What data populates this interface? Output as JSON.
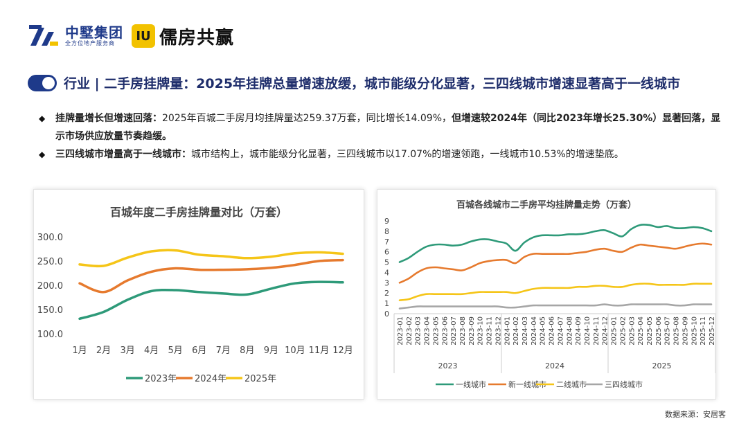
{
  "header": {
    "company_name": "中墅集团",
    "company_tagline": "全方位地产服务商",
    "badge_text": "IU",
    "brand_name": "儒房共赢"
  },
  "page_title": "行业 | 二手房挂牌量：2025年挂牌总量增速放缓，城市能级分化显著，三四线城市增速显著高于一线城市",
  "bullets": [
    {
      "bold_lead": "挂牌量增长但增速回落：",
      "text": "2025年百城二手房月均挂牌量达259.37万套，同比增长14.09%，",
      "bold_tail": "但增速较2024年（同比2023年增长25.30%）显著回落，显示市场供应放量节奏趋缓。"
    },
    {
      "bold_lead": "三四线城市增量高于一线城市：",
      "text": "城市结构上，城市能级分化显著，三四线城市以17.07%的增速领跑，一线城市10.53%的增速垫底。",
      "bold_tail": ""
    }
  ],
  "footer": {
    "source": "数据来源：安居客"
  },
  "colors": {
    "green": "#2e9a79",
    "orange": "#e67a2e",
    "yellow": "#f5c518",
    "gray": "#a6a6a6",
    "navy": "#1e3a8a"
  },
  "chart_data": [
    {
      "type": "line",
      "title": "百城年度二手房挂牌量对比（万套）",
      "categories": [
        "1月",
        "2月",
        "3月",
        "4月",
        "5月",
        "6月",
        "7月",
        "8月",
        "9月",
        "10月",
        "11月",
        "12月"
      ],
      "ylim": [
        100,
        300
      ],
      "yticks": [
        "100.0",
        "150.0",
        "200.0",
        "250.0",
        "300.0"
      ],
      "legend_position": "bottom",
      "series": [
        {
          "name": "2023年",
          "color": "#2e9a79",
          "values": [
            131,
            145,
            170,
            188,
            190,
            186,
            183,
            181,
            193,
            204,
            207,
            206
          ]
        },
        {
          "name": "2024年",
          "color": "#e67a2e",
          "values": [
            204,
            186,
            210,
            228,
            235,
            232,
            232,
            233,
            236,
            242,
            250,
            252
          ]
        },
        {
          "name": "2025年",
          "color": "#f5c518",
          "values": [
            243,
            240,
            257,
            270,
            272,
            263,
            260,
            256,
            259,
            266,
            268,
            265
          ]
        }
      ]
    },
    {
      "type": "line",
      "title": "百城各线城市二手房平均挂牌量走势（万套）",
      "categories": [
        "2023-01",
        "2023-02",
        "2023-03",
        "2023-04",
        "2023-05",
        "2023-06",
        "2023-07",
        "2023-08",
        "2023-09",
        "2023-10",
        "2023-11",
        "2023-12",
        "2024-01",
        "2024-02",
        "2024-03",
        "2024-04",
        "2024-05",
        "2024-06",
        "2024-07",
        "2024-08",
        "2024-09",
        "2024-10",
        "2024-11",
        "2024-12",
        "2025-01",
        "2025-02",
        "2025-03",
        "2025-04",
        "2025-05",
        "2025-06",
        "2025-07",
        "2025-08",
        "2025-09",
        "2025-10",
        "2025-11",
        "2025-12"
      ],
      "year_groups": [
        "2023",
        "2024",
        "2025"
      ],
      "ylim": [
        0,
        9
      ],
      "yticks": [
        "0",
        "1",
        "2",
        "3",
        "4",
        "5",
        "6",
        "7",
        "8",
        "9"
      ],
      "legend_position": "bottom",
      "series": [
        {
          "name": "一线城市",
          "color": "#2e9a79",
          "values": [
            5.0,
            5.4,
            6.0,
            6.5,
            6.7,
            6.7,
            6.6,
            6.7,
            7.0,
            7.2,
            7.2,
            7.0,
            6.8,
            6.1,
            6.9,
            7.4,
            7.6,
            7.6,
            7.6,
            7.7,
            7.7,
            7.8,
            8.0,
            8.1,
            7.8,
            7.5,
            8.2,
            8.6,
            8.6,
            8.4,
            8.5,
            8.3,
            8.3,
            8.4,
            8.3,
            8.0
          ]
        },
        {
          "name": "新一线城市",
          "color": "#e67a2e",
          "values": [
            3.0,
            3.4,
            4.0,
            4.4,
            4.5,
            4.4,
            4.3,
            4.2,
            4.5,
            4.9,
            5.1,
            5.2,
            5.2,
            4.9,
            5.5,
            5.8,
            5.8,
            5.8,
            5.8,
            5.8,
            5.9,
            6.0,
            6.2,
            6.3,
            6.1,
            6.0,
            6.4,
            6.7,
            6.6,
            6.5,
            6.4,
            6.3,
            6.5,
            6.7,
            6.8,
            6.7
          ]
        },
        {
          "name": "二线城市",
          "color": "#f5c518",
          "values": [
            1.3,
            1.4,
            1.7,
            1.9,
            1.9,
            1.9,
            1.9,
            1.9,
            2.0,
            2.1,
            2.1,
            2.1,
            2.1,
            2.0,
            2.2,
            2.4,
            2.5,
            2.5,
            2.5,
            2.5,
            2.6,
            2.6,
            2.7,
            2.7,
            2.6,
            2.6,
            2.8,
            2.9,
            2.9,
            2.8,
            2.8,
            2.8,
            2.8,
            2.9,
            2.9,
            2.9
          ]
        },
        {
          "name": "三四线城市",
          "color": "#a6a6a6",
          "values": [
            0.5,
            0.6,
            0.7,
            0.7,
            0.7,
            0.7,
            0.7,
            0.7,
            0.7,
            0.7,
            0.7,
            0.7,
            0.6,
            0.6,
            0.7,
            0.8,
            0.8,
            0.8,
            0.8,
            0.8,
            0.8,
            0.8,
            0.8,
            0.9,
            0.8,
            0.8,
            0.9,
            0.9,
            0.9,
            0.9,
            0.9,
            0.8,
            0.8,
            0.9,
            0.9,
            0.9
          ]
        }
      ]
    }
  ]
}
